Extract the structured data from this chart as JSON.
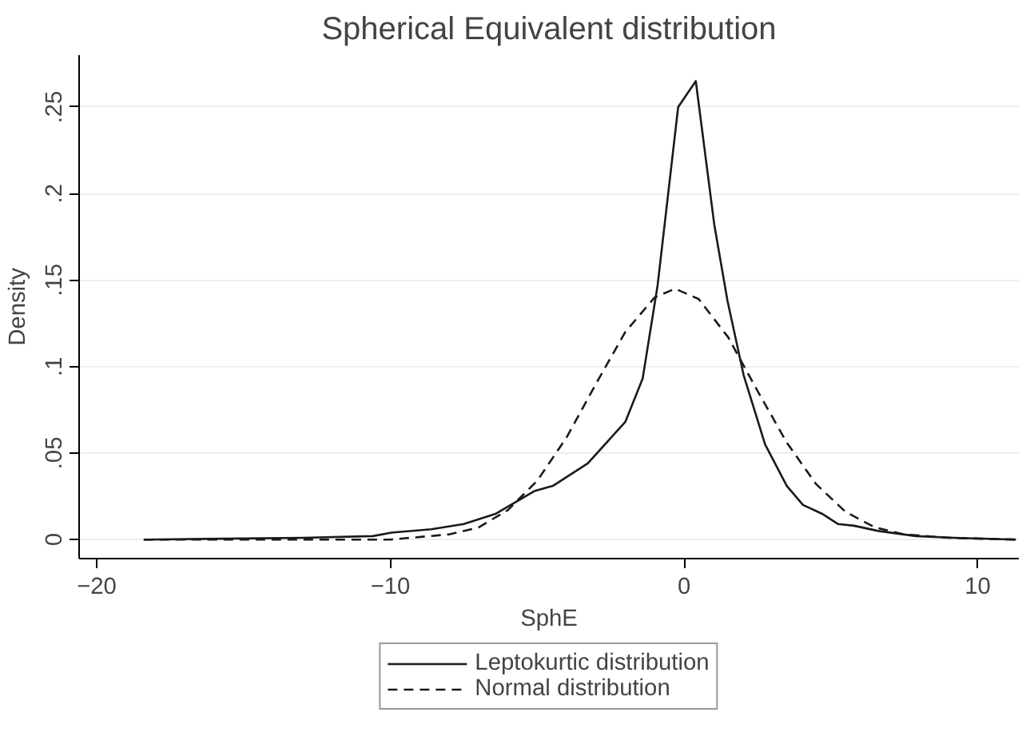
{
  "chart_data": {
    "type": "line",
    "title": "Spherical Equivalent distribution",
    "xlabel": "SphE",
    "ylabel": "Density",
    "xlim": [
      -20.6,
      11.4
    ],
    "ylim": [
      -0.011,
      0.28
    ],
    "xticks": [
      {
        "value": -20,
        "label": "−20"
      },
      {
        "value": -10,
        "label": "−10"
      },
      0,
      10
    ],
    "yticks": [
      0,
      {
        "value": 0.05,
        "label": ".05"
      },
      {
        "value": 0.1,
        "label": ".1"
      },
      {
        "value": 0.15,
        "label": ".15"
      },
      {
        "value": 0.2,
        "label": ".2"
      },
      {
        "value": 0.25,
        "label": ".25"
      }
    ],
    "grid": "y",
    "legend": "bottom",
    "series": [
      {
        "name": "Leptokurtic distribution",
        "color": "#1a1a1a",
        "line_style": "solid",
        "x": [
          -18.4,
          -13.0,
          -10.6,
          -9.96,
          -8.6,
          -7.5,
          -6.4,
          -5.1,
          -4.47,
          -3.28,
          -2.0,
          -1.41,
          -0.9,
          -0.2,
          0.4,
          1.03,
          1.48,
          2.03,
          2.76,
          3.5,
          4.05,
          4.69,
          5.24,
          5.79,
          6.61,
          7.9,
          9.2,
          11.3
        ],
        "values": [
          0,
          0.001,
          0.002,
          0.004,
          0.006,
          0.009,
          0.015,
          0.028,
          0.031,
          0.044,
          0.068,
          0.093,
          0.147,
          0.25,
          0.265,
          0.182,
          0.138,
          0.095,
          0.055,
          0.031,
          0.02,
          0.015,
          0.009,
          0.008,
          0.005,
          0.002,
          0.001,
          0
        ]
      },
      {
        "name": "Normal distribution",
        "color": "#1a1a1a",
        "line_style": "dashed",
        "x": [
          -18.4,
          -14,
          -10,
          -8,
          -7,
          -6,
          -5,
          -4,
          -3,
          -2,
          -1,
          -0.3,
          0.5,
          1.5,
          2.5,
          3.5,
          4.5,
          5.5,
          6.5,
          7.5,
          9,
          11.3
        ],
        "values": [
          0,
          0,
          0,
          0.003,
          0.007,
          0.017,
          0.034,
          0.059,
          0.09,
          0.12,
          0.14,
          0.145,
          0.139,
          0.117,
          0.086,
          0.056,
          0.032,
          0.016,
          0.007,
          0.003,
          0.001,
          0
        ]
      }
    ]
  }
}
